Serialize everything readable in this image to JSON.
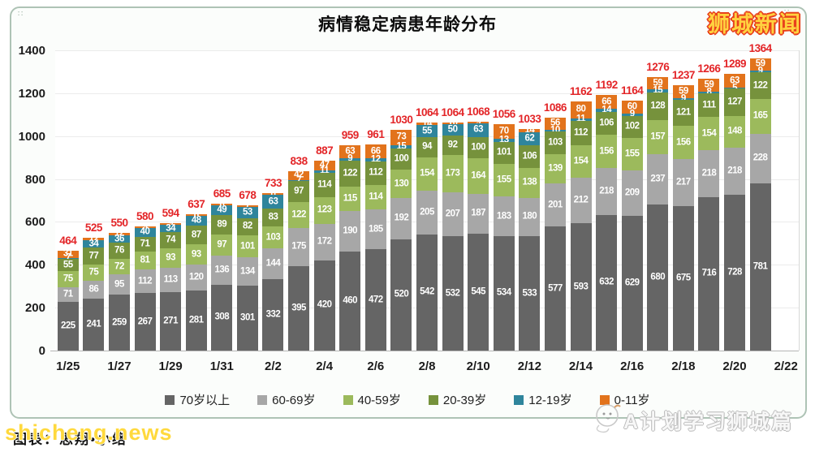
{
  "header": {
    "title": "病情稳定病患年龄分布",
    "logo_text": "狮城新闻"
  },
  "watermarks": {
    "bottom_left_overlay": "shicheng.news",
    "bottom_left_caption": "图表：思翔•小络",
    "bottom_right": "A计划学习狮城篇"
  },
  "colors": {
    "age_70_plus": "#656565",
    "age_60_69": "#a7a7a7",
    "age_40_59": "#9cba5c",
    "age_20_39": "#76923c",
    "age_12_19": "#2f859c",
    "age_0_11": "#e2731c",
    "total_label": "#e32528",
    "card_border": "#aec3b5",
    "logo_fill": "#ffd23f",
    "logo_outline": "#e8401c"
  },
  "chart_data": {
    "type": "bar",
    "stacked": true,
    "title": "病情稳定病患年龄分布",
    "xlabel": "",
    "ylabel": "",
    "ylim": [
      0,
      1400
    ],
    "yticks": [
      0,
      200,
      400,
      600,
      800,
      1000,
      1200,
      1400
    ],
    "grid": true,
    "legend_position": "bottom",
    "x_tick_labels": [
      "1/25",
      "1/27",
      "1/29",
      "1/31",
      "2/2",
      "2/4",
      "2/6",
      "2/8",
      "2/10",
      "2/12",
      "2/14",
      "2/16",
      "2/18",
      "2/20",
      "2/22"
    ],
    "categories": [
      "1/25",
      "1/26",
      "1/27",
      "1/28",
      "1/29",
      "1/30",
      "1/31",
      "2/1",
      "2/2",
      "2/3",
      "2/4",
      "2/5",
      "2/6",
      "2/7",
      "2/8",
      "2/9",
      "2/10",
      "2/11",
      "2/12",
      "2/13",
      "2/14",
      "2/15",
      "2/16",
      "2/17",
      "2/18",
      "2/19",
      "2/20",
      "2/21"
    ],
    "series": [
      {
        "name": "70岁以上",
        "color": "#656565",
        "values": [
          225,
          241,
          259,
          267,
          271,
          281,
          308,
          301,
          332,
          395,
          420,
          460,
          472,
          520,
          542,
          532,
          545,
          534,
          533,
          577,
          593,
          632,
          629,
          680,
          675,
          716,
          728,
          781
        ]
      },
      {
        "name": "60-69岁",
        "color": "#a7a7a7",
        "values": [
          71,
          86,
          95,
          112,
          113,
          120,
          136,
          134,
          144,
          175,
          172,
          190,
          185,
          192,
          205,
          207,
          187,
          183,
          180,
          201,
          212,
          218,
          209,
          237,
          217,
          218,
          218,
          228
        ]
      },
      {
        "name": "40-59岁",
        "color": "#9cba5c",
        "values": [
          75,
          75,
          72,
          81,
          93,
          93,
          97,
          101,
          103,
          122,
          123,
          115,
          114,
          130,
          154,
          173,
          164,
          155,
          138,
          139,
          154,
          156,
          155,
          157,
          156,
          154,
          148,
          165
        ]
      },
      {
        "name": "20-39岁",
        "color": "#76923c",
        "values": [
          55,
          77,
          76,
          71,
          74,
          87,
          89,
          82,
          83,
          97,
          114,
          122,
          112,
          100,
          94,
          92,
          100,
          101,
          106,
          103,
          112,
          106,
          102,
          128,
          121,
          111,
          127,
          122
        ]
      },
      {
        "name": "12-19岁",
        "color": "#2f859c",
        "values": [
          7,
          34,
          36,
          40,
          34,
          48,
          49,
          53,
          63,
          7,
          11,
          9,
          12,
          15,
          55,
          50,
          63,
          13,
          62,
          10,
          11,
          14,
          9,
          15,
          9,
          8,
          5,
          9
        ]
      },
      {
        "name": "0-11岁",
        "color": "#e2731c",
        "values": [
          31,
          12,
          12,
          9,
          9,
          8,
          6,
          7,
          8,
          42,
          47,
          63,
          66,
          73,
          14,
          10,
          9,
          70,
          14,
          56,
          80,
          66,
          60,
          59,
          59,
          59,
          63,
          59
        ]
      }
    ],
    "totals": [
      464,
      525,
      550,
      580,
      594,
      637,
      685,
      678,
      733,
      838,
      887,
      959,
      961,
      1030,
      1064,
      1064,
      1068,
      1056,
      1033,
      1086,
      1162,
      1192,
      1164,
      1276,
      1237,
      1266,
      1289,
      1364
    ]
  }
}
